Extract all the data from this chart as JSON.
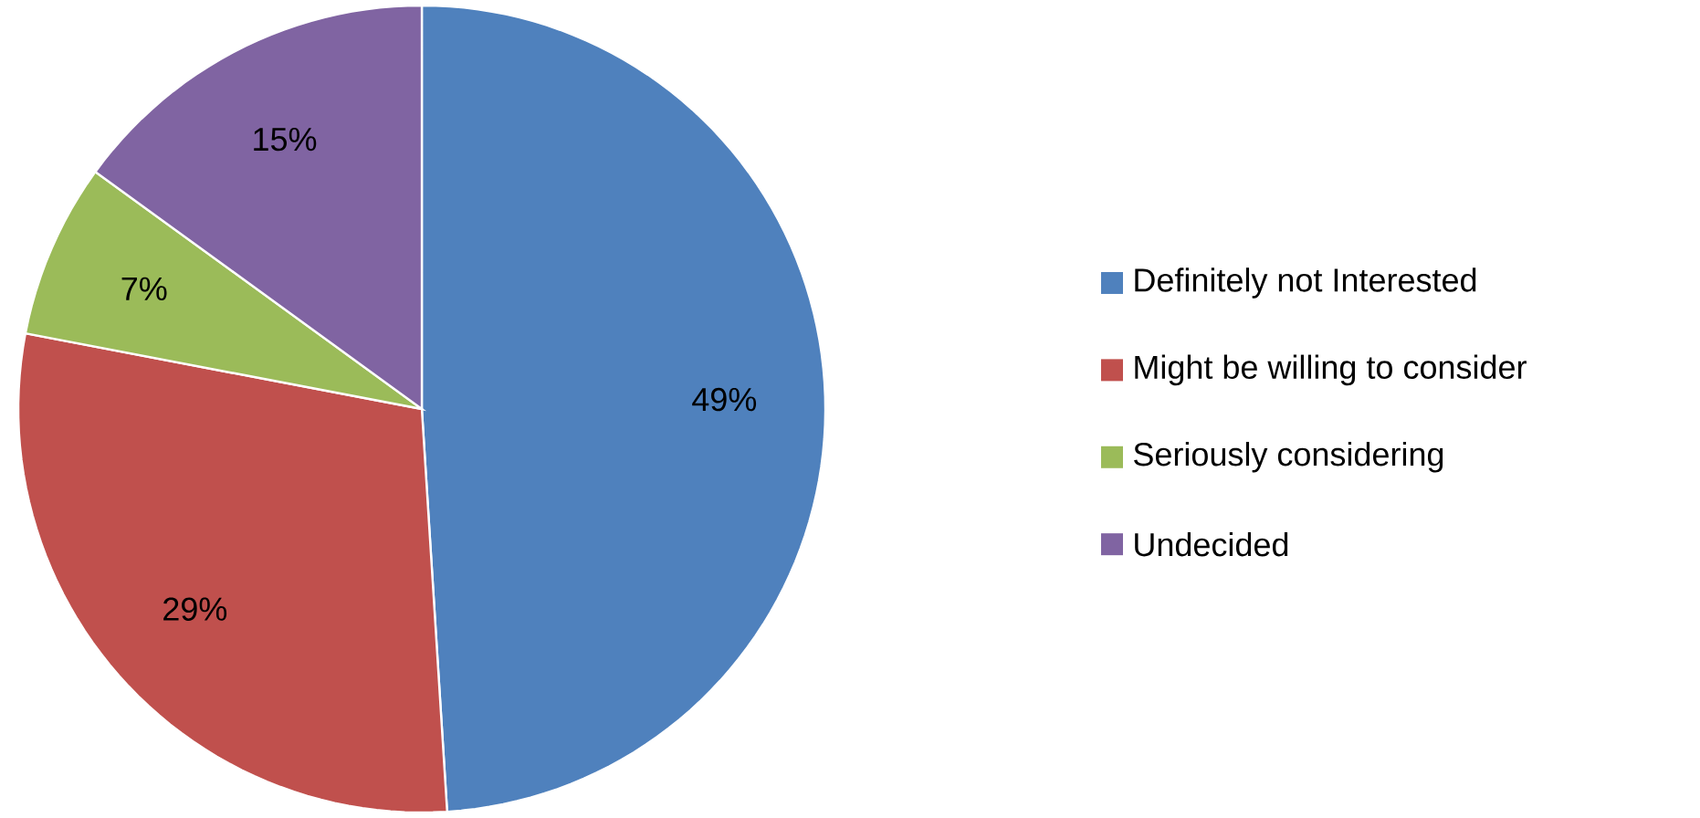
{
  "chart_data": {
    "type": "pie",
    "categories": [
      "Definitely not Interested",
      "Might be willing to consider",
      "Seriously considering",
      "Undecided"
    ],
    "values": [
      49,
      29,
      7,
      15
    ],
    "value_labels": [
      "49%",
      "29%",
      "7%",
      "15%"
    ],
    "colors": [
      "#4f81bd",
      "#c0504d",
      "#9bbb59",
      "#8064a2"
    ],
    "legend": "right"
  }
}
